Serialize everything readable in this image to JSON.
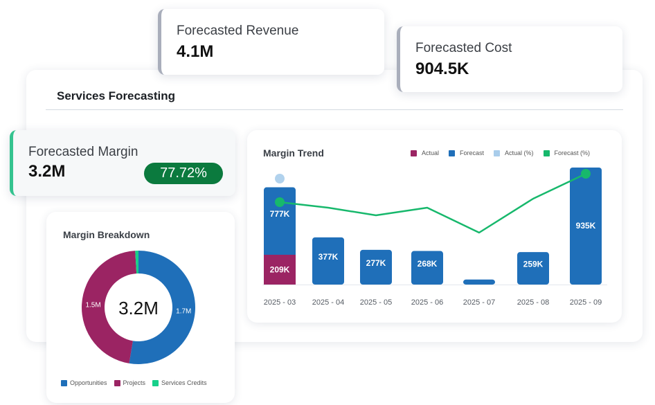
{
  "kpis": {
    "revenue": {
      "label": "Forecasted Revenue",
      "value": "4.1M"
    },
    "cost": {
      "label": "Forecasted Cost",
      "value": "904.5K"
    },
    "margin": {
      "label": "Forecasted Margin",
      "value": "3.2M",
      "percent": "77.72%"
    }
  },
  "main": {
    "title": "Services Forecasting"
  },
  "colors": {
    "actual": "#9b2463",
    "forecast": "#1f6fb9",
    "actual_pct": "#a9cdeb",
    "forecast_pct": "#17b86c",
    "margin_accent": "#34c38f",
    "badge": "#0b7a3e"
  },
  "chart_data": [
    {
      "type": "bar",
      "title": "Margin Trend",
      "legend": [
        "Actual",
        "Forecast",
        "Actual (%)",
        "Forecast (%)"
      ],
      "legend_position": "top-right",
      "categories": [
        "2025 - 03",
        "2025 - 04",
        "2025 - 05",
        "2025 - 06",
        "2025 - 07",
        "2025 - 08",
        "2025 - 09"
      ],
      "series": [
        {
          "name": "Actual",
          "values": [
            209,
            0,
            0,
            0,
            0,
            0,
            0
          ],
          "labels": [
            "209K",
            "",
            "",
            "",
            "",
            "",
            ""
          ],
          "unit": "K"
        },
        {
          "name": "Forecast",
          "values": [
            777,
            377,
            277,
            268,
            40,
            259,
            935
          ],
          "labels": [
            "777K",
            "377K",
            "277K",
            "268K",
            "",
            "259K",
            "935K"
          ],
          "unit": "K"
        },
        {
          "name": "Actual (%)",
          "values": [
            95,
            null,
            null,
            null,
            null,
            null,
            null
          ],
          "unit": "%"
        },
        {
          "name": "Forecast (%)",
          "values": [
            71,
            68,
            64,
            68,
            56,
            73,
            85
          ],
          "unit": "%"
        }
      ],
      "grid": false
    },
    {
      "type": "pie",
      "title": "Margin Breakdown",
      "center_label": "3.2M",
      "categories": [
        "Opportunities",
        "Projects",
        "Services Credits"
      ],
      "values": [
        1.7,
        1.5,
        0.03
      ],
      "labels": [
        "1.7M",
        "1.5M",
        ""
      ],
      "legend_position": "bottom"
    }
  ]
}
